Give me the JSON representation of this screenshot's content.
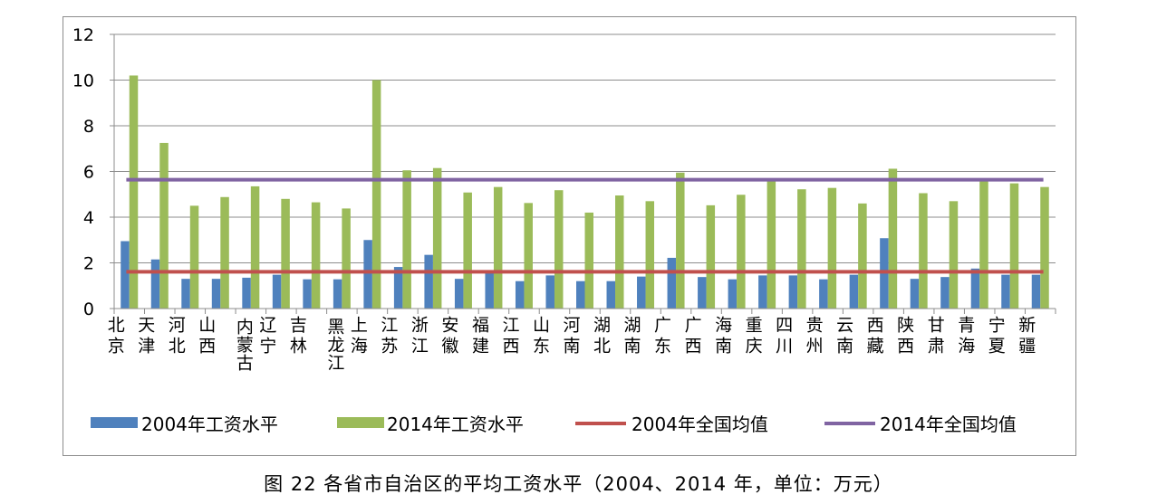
{
  "chart_data": {
    "type": "bar",
    "categories": [
      "北京",
      "天津",
      "河北",
      "山西",
      "内蒙古",
      "辽宁",
      "吉林",
      "黑龙江",
      "上海",
      "江苏",
      "浙江",
      "安徽",
      "福建",
      "江西",
      "山东",
      "河南",
      "湖北",
      "湖南",
      "广东",
      "广西",
      "海南",
      "重庆",
      "四川",
      "贵州",
      "云南",
      "西藏",
      "陕西",
      "甘肃",
      "青海",
      "宁夏",
      "新疆"
    ],
    "series": [
      {
        "name": "2004年工资水平",
        "color": "#4f81bd",
        "values": [
          2.95,
          2.15,
          1.3,
          1.3,
          1.35,
          1.48,
          1.28,
          1.28,
          3.0,
          1.82,
          2.35,
          1.3,
          1.58,
          1.2,
          1.45,
          1.2,
          1.2,
          1.4,
          2.22,
          1.38,
          1.28,
          1.45,
          1.45,
          1.28,
          1.48,
          3.08,
          1.3,
          1.38,
          1.75,
          1.48,
          1.48
        ]
      },
      {
        "name": "2014年工资水平",
        "color": "#9bbb59",
        "values": [
          10.2,
          7.25,
          4.5,
          4.88,
          5.35,
          4.8,
          4.65,
          4.38,
          10.0,
          6.05,
          6.15,
          5.08,
          5.32,
          4.62,
          5.18,
          4.2,
          4.95,
          4.7,
          5.95,
          4.52,
          4.98,
          5.58,
          5.22,
          5.28,
          4.6,
          6.12,
          5.05,
          4.7,
          5.68,
          5.48,
          5.32
        ]
      }
    ],
    "reference_lines": [
      {
        "name": "2004年全国均值",
        "color": "#c0504d",
        "value": 1.61
      },
      {
        "name": "2014年全国均值",
        "color": "#8064a2",
        "value": 5.64
      }
    ],
    "yticks": [
      "0",
      "2",
      "4",
      "6",
      "8",
      "10",
      "12"
    ],
    "ylim": [
      0,
      12
    ],
    "grid": true,
    "legend_position": "bottom"
  },
  "caption": "图 22 各省市自治区的平均工资水平（2004、2014 年，单位：万元）"
}
